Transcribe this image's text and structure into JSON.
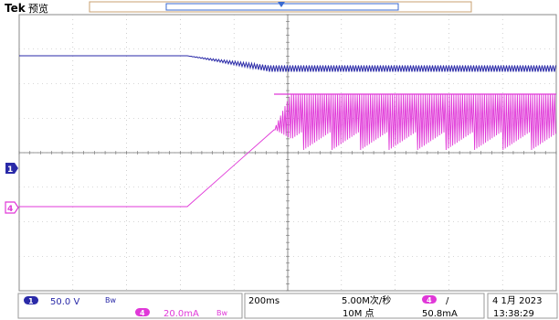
{
  "brand": "Tek",
  "mode": "预览",
  "channels": {
    "ch1": {
      "badge": "1",
      "scale": "50.0 V",
      "color": "#2a2aa8"
    },
    "ch4": {
      "badge": "4",
      "scale": "20.0mA",
      "color": "#e038d8"
    }
  },
  "bw_icon": "bandwidth-limit-icon",
  "timebase": {
    "time_div": "200ms",
    "sample_rate": "5.00M次/秒",
    "record_length": "10M 点"
  },
  "trigger": {
    "source": "4",
    "slope": "/",
    "level": "50.8mA"
  },
  "datetime": {
    "date": "4 1月 2023",
    "time": "13:38:29"
  },
  "colors": {
    "ch1": "#2a2aa8",
    "ch4": "#e038d8",
    "grid": "#9a9a9a",
    "frame": "#c8a070"
  }
}
